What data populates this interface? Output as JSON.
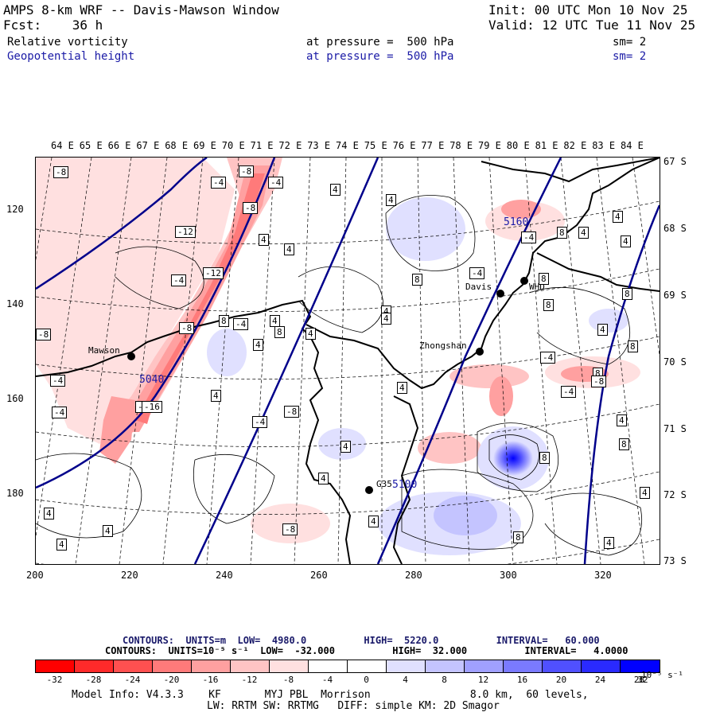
{
  "header": {
    "title": "AMPS 8-km WRF -- Davis-Mawson Window",
    "fcst": "Fcst:    36 h",
    "init": "Init: 00 UTC Mon 10 Nov 25",
    "valid": "Valid: 12 UTC Tue 11 Nov 25",
    "field1": "Relative vorticity",
    "field1_level": "at pressure =  500 hPa",
    "field1_sm": "sm= 2",
    "field2": "Geopotential height",
    "field2_level": "at pressure =  500 hPa",
    "field2_sm": "sm= 2"
  },
  "map": {
    "top_lon_labels": [
      "64 E",
      "65 E",
      "66 E",
      "67 E",
      "68 E",
      "69 E",
      "70 E",
      "71 E",
      "72 E",
      "73 E",
      "74 E",
      "75 E",
      "76 E",
      "77 E",
      "78 E",
      "79 E",
      "80 E",
      "81 E",
      "82 E",
      "83 E",
      "84 E"
    ],
    "left_grid_labels": [
      "120",
      "140",
      "160",
      "180"
    ],
    "bottom_grid_labels": [
      "200",
      "220",
      "240",
      "260",
      "280",
      "300",
      "320"
    ],
    "right_lat_labels": [
      "67 S",
      "68 S",
      "69 S",
      "70 S",
      "71 S",
      "72 S",
      "73 S"
    ],
    "stations": [
      {
        "name": "Mawson"
      },
      {
        "name": "Davis"
      },
      {
        "name": "WHD"
      },
      {
        "name": "Zhongshan"
      },
      {
        "name": "G35"
      }
    ],
    "height_labels": [
      "5160",
      "5040",
      "5100"
    ],
    "contour_labels": [
      "-8",
      "-4",
      "-4",
      "-8",
      "-8",
      "-12",
      "4",
      "4",
      "4",
      "-4",
      "-4",
      "-12",
      "4",
      "8",
      "8",
      "4",
      "-8",
      "-4",
      "-8",
      "4",
      "4",
      "8",
      "4",
      "8",
      "4",
      "4",
      "-4",
      "8",
      "-16",
      "4",
      "-4",
      "-4",
      "-16",
      "-4",
      "-8",
      "4",
      "4",
      "4",
      "-8",
      "8",
      "8",
      "4",
      "-4",
      "4",
      "-8",
      "-4",
      "8",
      "4",
      "4",
      "4",
      "8",
      "8",
      "4",
      "4",
      "4",
      "8",
      "4",
      "4",
      "8"
    ]
  },
  "colorbar": {
    "colors": [
      "#ff0000",
      "#ff2a2a",
      "#ff5050",
      "#ff7a7a",
      "#ffa0a0",
      "#ffc4c4",
      "#ffe0e0",
      "#ffffff",
      "#ffffff",
      "#e0e0ff",
      "#c4c4ff",
      "#a0a0ff",
      "#7a7aff",
      "#5050ff",
      "#2a2aff",
      "#0000ff"
    ],
    "ticks": [
      "-32",
      "-28",
      "-24",
      "-20",
      "-16",
      "-12",
      "-8",
      "-4",
      "0",
      "4",
      "8",
      "12",
      "16",
      "20",
      "24",
      "28",
      "32"
    ],
    "unit": "10⁻⁵ s⁻¹",
    "contour_line1": "CONTOURS:  UNITS=m  LOW=  4980.0          HIGH=  5220.0          INTERVAL=   60.000",
    "contour_line2": "CONTOURS:  UNITS=10⁻⁵ s⁻¹  LOW=  -32.000          HIGH=  32.000          INTERVAL=   4.0000"
  },
  "model_info": {
    "line1": "Model Info: V4.3.3    KF       MYJ PBL  Morrison                8.0 km,  60 levels,",
    "line2": "LW: RRTM SW: RRTMG   DIFF: simple KM: 2D Smagor"
  }
}
